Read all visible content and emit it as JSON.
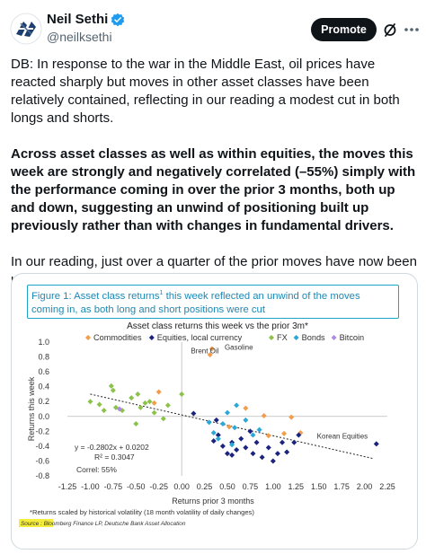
{
  "author": {
    "name": "Neil Sethi",
    "handle": "@neilksethi"
  },
  "actions": {
    "promote_label": "Promote"
  },
  "tweet": {
    "paragraph1": "DB: In response to the war in the Middle East, oil prices have reacted sharply but moves in other asset classes have been relatively contained, reflecting in our reading a modest cut in both longs and shorts.",
    "paragraph2": "Across asset classes as well as within equities, the moves this week are strongly and negatively correlated (–55%) simply with the performance coming in over the prior 3 months, both up and down, suggesting an unwind of positioning built up previously rather than with changes in fundamental drivers.",
    "paragraph3": "In our reading, just over a quarter of the prior moves have now been unwound."
  },
  "figure": {
    "title_part1": "Figure 1: Asset class returns",
    "title_sup": "1",
    "title_part2": " this week reflected an unwind of the moves coming in, as both long and short positions were cut",
    "footnote": "*Returns scaled by historical volatility (18 month volatility of daily changes)",
    "source": "Source : Bloomberg Finance LP, Deutsche Bank Asset Allocation"
  },
  "chart_data": {
    "type": "scatter",
    "title": "Asset class returns this week vs the prior 3m*",
    "xlabel": "Returns prior 3 months",
    "ylabel": "Returns this week",
    "xlim": [
      -1.25,
      2.25
    ],
    "ylim": [
      -0.8,
      1.0
    ],
    "xticks": [
      "-1.25",
      "-1.00",
      "-0.75",
      "-0.50",
      "-0.25",
      "0.00",
      "0.25",
      "0.50",
      "0.75",
      "1.00",
      "1.25",
      "1.50",
      "1.75",
      "2.00",
      "2.25"
    ],
    "yticks": [
      "1.0",
      "0.8",
      "0.6",
      "0.4",
      "0.2",
      "0.0",
      "-0.2",
      "-0.4",
      "-0.6",
      "-0.8"
    ],
    "legend_position": "top",
    "trendline": {
      "slope": -0.2802,
      "intercept": 0.0202
    },
    "stats": {
      "equation": "y = -0.2802x + 0.0202",
      "r_squared": "R² = 0.3047",
      "correl": "Correl: 55%"
    },
    "annotations": [
      {
        "text": "Brent Oil",
        "x": 0.1,
        "y": 0.85
      },
      {
        "text": "Gasoline",
        "x": 0.47,
        "y": 0.9
      },
      {
        "text": "Korean Equities",
        "x": 1.48,
        "y": -0.3
      }
    ],
    "series": [
      {
        "name": "Commodities",
        "color": "#f39c4a",
        "symbol": "diamond",
        "points": [
          [
            0.33,
            0.91
          ],
          [
            0.31,
            0.83
          ],
          [
            -0.25,
            0.33
          ],
          [
            -0.3,
            0.18
          ],
          [
            0.7,
            0.11
          ],
          [
            0.9,
            0.01
          ],
          [
            1.2,
            -0.01
          ],
          [
            1.12,
            -0.23
          ],
          [
            0.95,
            -0.26
          ],
          [
            1.3,
            -0.22
          ],
          [
            0.52,
            -0.14
          ]
        ]
      },
      {
        "name": "Equities, local currency",
        "color": "#1a237e",
        "symbol": "diamond",
        "points": [
          [
            0.13,
            0.04
          ],
          [
            0.38,
            -0.05
          ],
          [
            0.4,
            -0.25
          ],
          [
            0.45,
            -0.4
          ],
          [
            0.5,
            -0.5
          ],
          [
            0.55,
            -0.35
          ],
          [
            0.6,
            -0.45
          ],
          [
            0.65,
            -0.3
          ],
          [
            0.7,
            -0.42
          ],
          [
            0.75,
            -0.2
          ],
          [
            0.78,
            -0.5
          ],
          [
            0.82,
            -0.35
          ],
          [
            0.88,
            -0.55
          ],
          [
            0.95,
            -0.42
          ],
          [
            1.0,
            -0.6
          ],
          [
            1.05,
            -0.5
          ],
          [
            1.1,
            -0.35
          ],
          [
            1.15,
            -0.48
          ],
          [
            1.23,
            -0.35
          ],
          [
            1.28,
            -0.25
          ],
          [
            0.35,
            -0.33
          ],
          [
            0.55,
            -0.52
          ],
          [
            2.13,
            -0.37
          ]
        ]
      },
      {
        "name": "FX",
        "color": "#8bc34a",
        "symbol": "diamond",
        "points": [
          [
            -1.0,
            0.2
          ],
          [
            -0.9,
            0.16
          ],
          [
            -0.85,
            0.08
          ],
          [
            -0.77,
            0.41
          ],
          [
            -0.75,
            0.35
          ],
          [
            -0.72,
            0.12
          ],
          [
            -0.65,
            0.08
          ],
          [
            -0.55,
            0.25
          ],
          [
            -0.48,
            0.3
          ],
          [
            -0.45,
            0.12
          ],
          [
            -0.4,
            0.18
          ],
          [
            -0.35,
            0.2
          ],
          [
            -0.3,
            0.05
          ],
          [
            -0.2,
            -0.03
          ],
          [
            -0.5,
            -0.1
          ],
          [
            0.0,
            0.3
          ],
          [
            -0.15,
            0.15
          ]
        ]
      },
      {
        "name": "Bonds",
        "color": "#2aa8d8",
        "symbol": "diamond",
        "points": [
          [
            0.3,
            -0.08
          ],
          [
            0.35,
            -0.22
          ],
          [
            0.4,
            -0.3
          ],
          [
            0.45,
            -0.1
          ],
          [
            0.5,
            0.05
          ],
          [
            0.58,
            -0.15
          ],
          [
            0.6,
            0.15
          ],
          [
            0.7,
            -0.05
          ],
          [
            0.78,
            -0.25
          ],
          [
            0.85,
            -0.18
          ],
          [
            0.55,
            -0.38
          ]
        ]
      },
      {
        "name": "Bitcoin",
        "color": "#b388e6",
        "symbol": "diamond",
        "points": [
          [
            -0.68,
            0.1
          ]
        ]
      }
    ]
  }
}
